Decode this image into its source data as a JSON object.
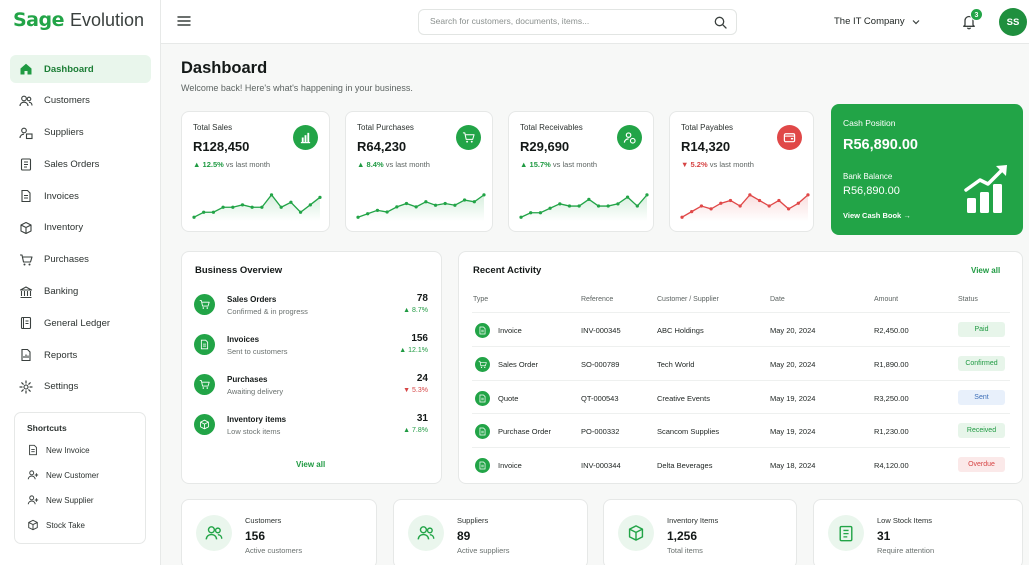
{
  "brand": {
    "name_part1": "Sage",
    "name_part2": "Evolution",
    "accent": "#22a447"
  },
  "sidebar": {
    "items": [
      {
        "label": "Dashboard",
        "icon": "home-icon",
        "active": true
      },
      {
        "label": "Customers",
        "icon": "users-icon"
      },
      {
        "label": "Suppliers",
        "icon": "suppliers-icon"
      },
      {
        "label": "Sales Orders",
        "icon": "clipboard-icon"
      },
      {
        "label": "Invoices",
        "icon": "document-icon"
      },
      {
        "label": "Inventory",
        "icon": "box-icon"
      },
      {
        "label": "Purchases",
        "icon": "cart-icon"
      },
      {
        "label": "Banking",
        "icon": "bank-icon"
      },
      {
        "label": "General Ledger",
        "icon": "ledger-icon"
      },
      {
        "label": "Reports",
        "icon": "report-icon"
      },
      {
        "label": "Settings",
        "icon": "gear-icon"
      }
    ],
    "shortcuts": {
      "title": "Shortcuts",
      "items": [
        {
          "label": "New Invoice",
          "icon": "document-icon"
        },
        {
          "label": "New Customer",
          "icon": "user-plus-icon"
        },
        {
          "label": "New Supplier",
          "icon": "user-plus-icon"
        },
        {
          "label": "Stock Take",
          "icon": "box-icon"
        }
      ]
    }
  },
  "topbar": {
    "search_placeholder": "Search for customers, documents, items...",
    "company": "The IT Company",
    "notifications": "3",
    "avatar": "SS"
  },
  "header": {
    "title": "Dashboard",
    "subtitle": "Welcome back! Here's what's happening in your business."
  },
  "kpis": [
    {
      "label": "Total Sales",
      "value": "R128,450",
      "change": "12.5%",
      "arrow": "▲",
      "direction": "up",
      "suffix": "vs last month",
      "icon": "bar-chart-icon",
      "color": "#22a447",
      "trend": [
        3,
        5,
        5,
        7,
        7,
        8,
        7,
        7,
        12,
        7,
        9,
        5,
        8,
        11
      ]
    },
    {
      "label": "Total Purchases",
      "value": "R64,230",
      "change": "8.4%",
      "arrow": "▲",
      "direction": "up",
      "suffix": "vs last month",
      "icon": "cart-icon",
      "color": "#22a447",
      "trend": [
        2,
        4,
        6,
        5,
        8,
        10,
        8,
        11,
        9,
        10,
        9,
        12,
        11,
        15
      ]
    },
    {
      "label": "Total Receivables",
      "value": "R29,690",
      "change": "15.7%",
      "arrow": "▲",
      "direction": "up",
      "suffix": "vs last month",
      "icon": "user-money-icon",
      "color": "#22a447",
      "trend": [
        3,
        5,
        5,
        7,
        9,
        8,
        8,
        11,
        8,
        8,
        9,
        12,
        8,
        13
      ]
    },
    {
      "label": "Total Payables",
      "value": "R14,320",
      "change": "5.2%",
      "arrow": "▼",
      "direction": "down",
      "suffix": "vs last month",
      "icon": "wallet-icon",
      "color": "#e04848",
      "trend": [
        4,
        6,
        8,
        7,
        9,
        10,
        8,
        12,
        10,
        8,
        10,
        7,
        9,
        12
      ]
    }
  ],
  "cash": {
    "title": "Cash Position",
    "value": "R56,890.00",
    "bank_label": "Bank Balance",
    "bank_value": "R56,890.00",
    "link": "View Cash Book",
    "link_arrow": "→"
  },
  "overview": {
    "title": "Business Overview",
    "items": [
      {
        "title": "Sales Orders",
        "sub": "Confirmed & in progress",
        "value": "78",
        "change": "8.7%",
        "arrow": "▲",
        "direction": "up",
        "icon": "cart-icon"
      },
      {
        "title": "Invoices",
        "sub": "Sent to customers",
        "value": "156",
        "change": "12.1%",
        "arrow": "▲",
        "direction": "up",
        "icon": "document-icon"
      },
      {
        "title": "Purchases",
        "sub": "Awaiting delivery",
        "value": "24",
        "change": "5.3%",
        "arrow": "▼",
        "direction": "down",
        "icon": "cart-icon"
      },
      {
        "title": "Inventory items",
        "sub": "Low stock items",
        "value": "31",
        "change": "7.8%",
        "arrow": "▲",
        "direction": "up",
        "icon": "box-icon"
      }
    ],
    "link": "View all"
  },
  "activity": {
    "title": "Recent Activity",
    "link": "View all",
    "columns": [
      "Type",
      "Reference",
      "Customer / Supplier",
      "Date",
      "Amount",
      "Status"
    ],
    "rows": [
      {
        "type": "Invoice",
        "ref": "INV-000345",
        "party": "ABC Holdings",
        "date": "May 20, 2024",
        "amount": "R2,450.00",
        "status": "Paid",
        "status_class": "st-paid",
        "icon": "document-icon"
      },
      {
        "type": "Sales Order",
        "ref": "SO-000789",
        "party": "Tech World",
        "date": "May 20, 2024",
        "amount": "R1,890.00",
        "status": "Confirmed",
        "status_class": "st-confirmed",
        "icon": "cart-icon"
      },
      {
        "type": "Quote",
        "ref": "QT-000543",
        "party": "Creative Events",
        "date": "May 19, 2024",
        "amount": "R3,250.00",
        "status": "Sent",
        "status_class": "st-sent",
        "icon": "document-icon"
      },
      {
        "type": "Purchase Order",
        "ref": "PO-000332",
        "party": "Scancom Supplies",
        "date": "May 19, 2024",
        "amount": "R1,230.00",
        "status": "Received",
        "status_class": "st-received",
        "icon": "document-icon"
      },
      {
        "type": "Invoice",
        "ref": "INV-000344",
        "party": "Delta Beverages",
        "date": "May 18, 2024",
        "amount": "R4,120.00",
        "status": "Overdue",
        "status_class": "st-overdue",
        "icon": "document-icon"
      }
    ]
  },
  "stats": [
    {
      "title": "Customers",
      "value": "156",
      "sub": "Active customers",
      "icon": "users-icon"
    },
    {
      "title": "Suppliers",
      "value": "89",
      "sub": "Active suppliers",
      "icon": "users-icon"
    },
    {
      "title": "Inventory Items",
      "value": "1,256",
      "sub": "Total items",
      "icon": "box-icon"
    },
    {
      "title": "Low Stock Items",
      "value": "31",
      "sub": "Require attention",
      "icon": "clipboard-icon"
    }
  ]
}
